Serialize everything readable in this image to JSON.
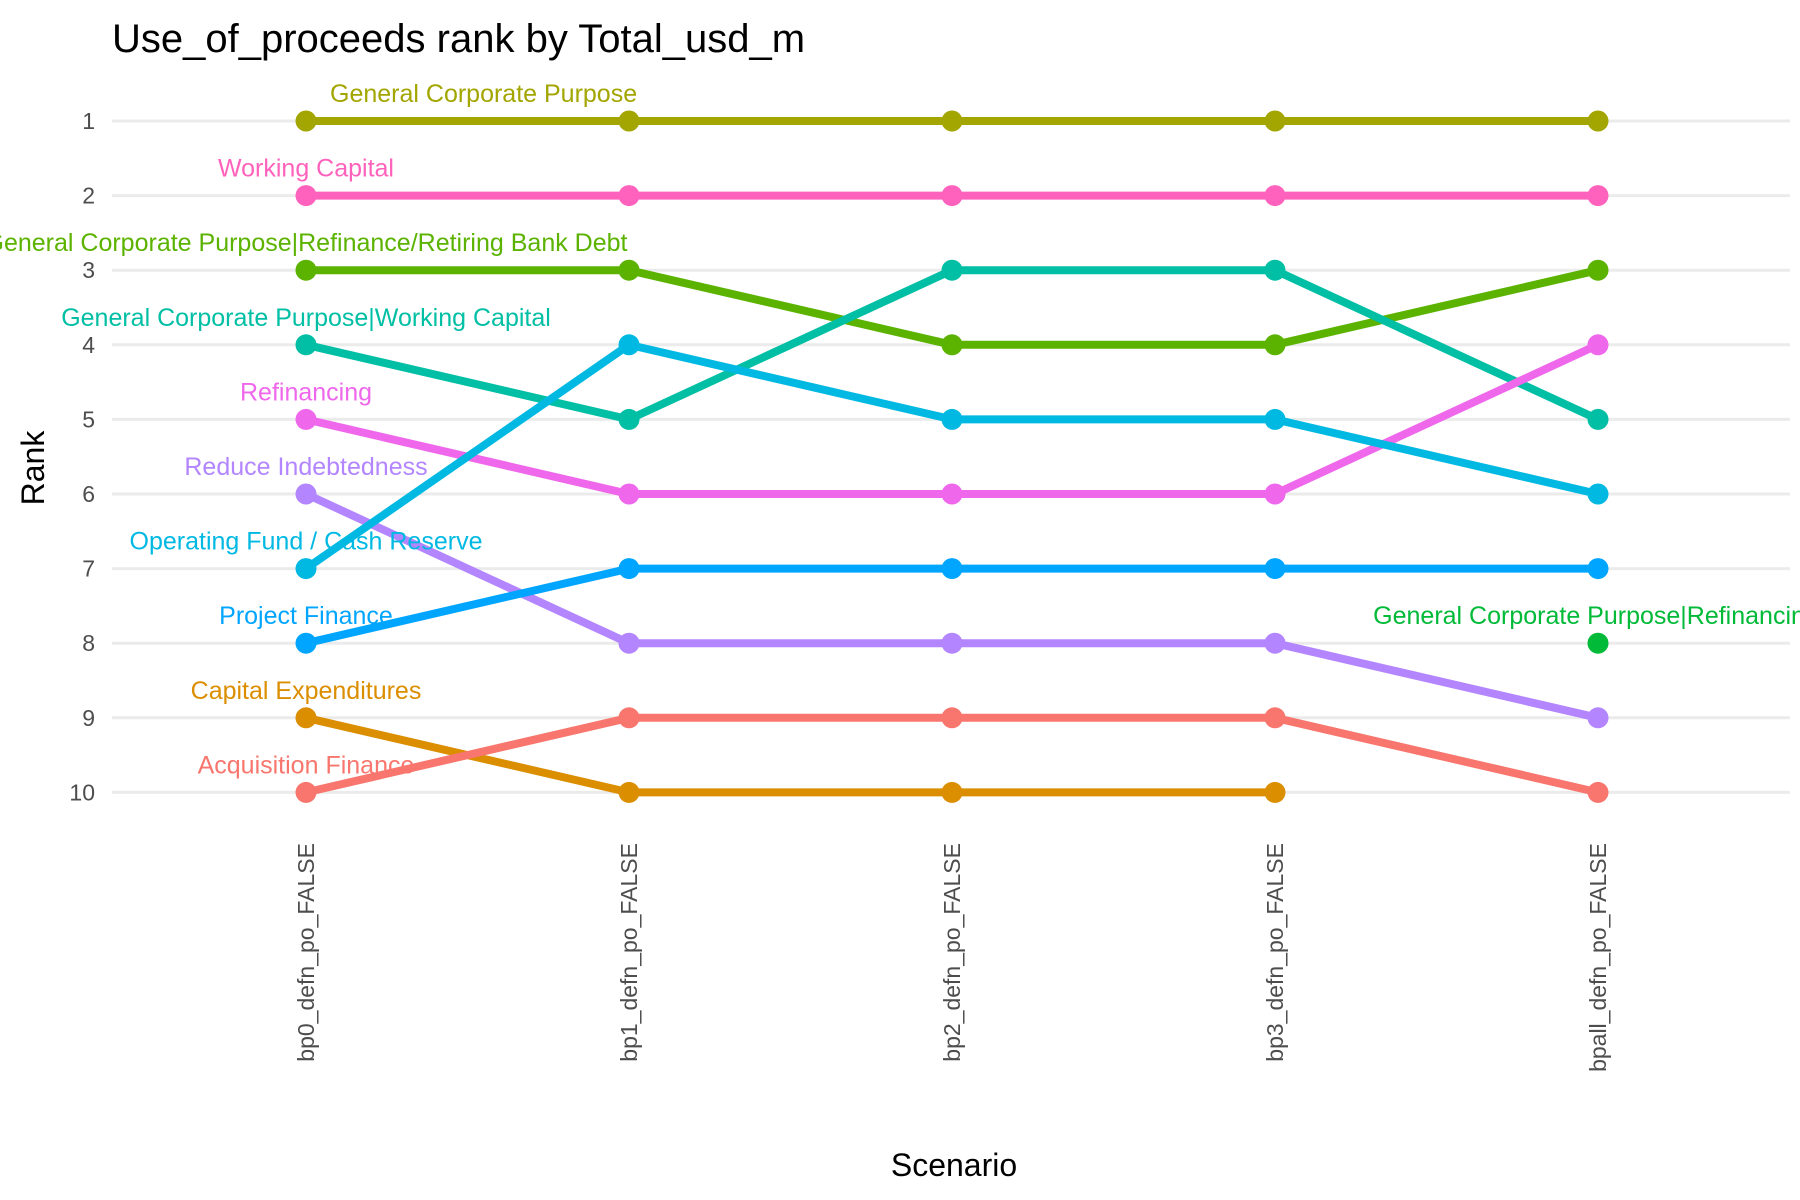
{
  "chart_data": {
    "type": "line",
    "title": "Use_of_proceeds rank by Total_usd_m",
    "xlabel": "Scenario",
    "ylabel": "Rank",
    "categories": [
      "bp0_defn_po_FALSE",
      "bp1_defn_po_FALSE",
      "bp2_defn_po_FALSE",
      "bp3_defn_po_FALSE",
      "bpall_defn_po_FALSE"
    ],
    "y_ticks": [
      1,
      2,
      3,
      4,
      5,
      6,
      7,
      8,
      9,
      10
    ],
    "ylim": [
      10.6,
      0.4
    ],
    "y_reversed": true,
    "grid": true,
    "legend": "none",
    "series": [
      {
        "name": "General Corporate Purpose",
        "color": "#A3A500",
        "values": [
          1,
          1,
          1,
          1,
          1
        ]
      },
      {
        "name": "Working Capital",
        "color": "#FF62BC",
        "values": [
          2,
          2,
          2,
          2,
          2
        ]
      },
      {
        "name": "General Corporate Purpose|Refinance/Retiring Bank Debt",
        "color": "#5BB300",
        "values": [
          3,
          3,
          4,
          4,
          3
        ]
      },
      {
        "name": "General Corporate Purpose|Working Capital",
        "color": "#00BFA4",
        "values": [
          4,
          5,
          3,
          3,
          5
        ]
      },
      {
        "name": "Refinancing",
        "color": "#EF67EB",
        "values": [
          5,
          6,
          6,
          6,
          4
        ]
      },
      {
        "name": "Reduce Indebtedness",
        "color": "#B385FF",
        "values": [
          6,
          8,
          8,
          8,
          9
        ]
      },
      {
        "name": "Operating Fund / Cash Reserve",
        "color": "#00B9E3",
        "values": [
          7,
          4,
          5,
          5,
          6
        ]
      },
      {
        "name": "Project Finance",
        "color": "#00A5FF",
        "values": [
          8,
          7,
          7,
          7,
          7
        ]
      },
      {
        "name": "Capital Expenditures",
        "color": "#DB8E00",
        "values": [
          9,
          10,
          10,
          10,
          null
        ]
      },
      {
        "name": "Acquisition Finance",
        "color": "#F8766D",
        "values": [
          10,
          9,
          9,
          9,
          10
        ]
      },
      {
        "name": "General Corporate Purpose|Refinancing",
        "color": "#00BA38",
        "values": [
          null,
          null,
          null,
          null,
          8
        ]
      }
    ]
  }
}
